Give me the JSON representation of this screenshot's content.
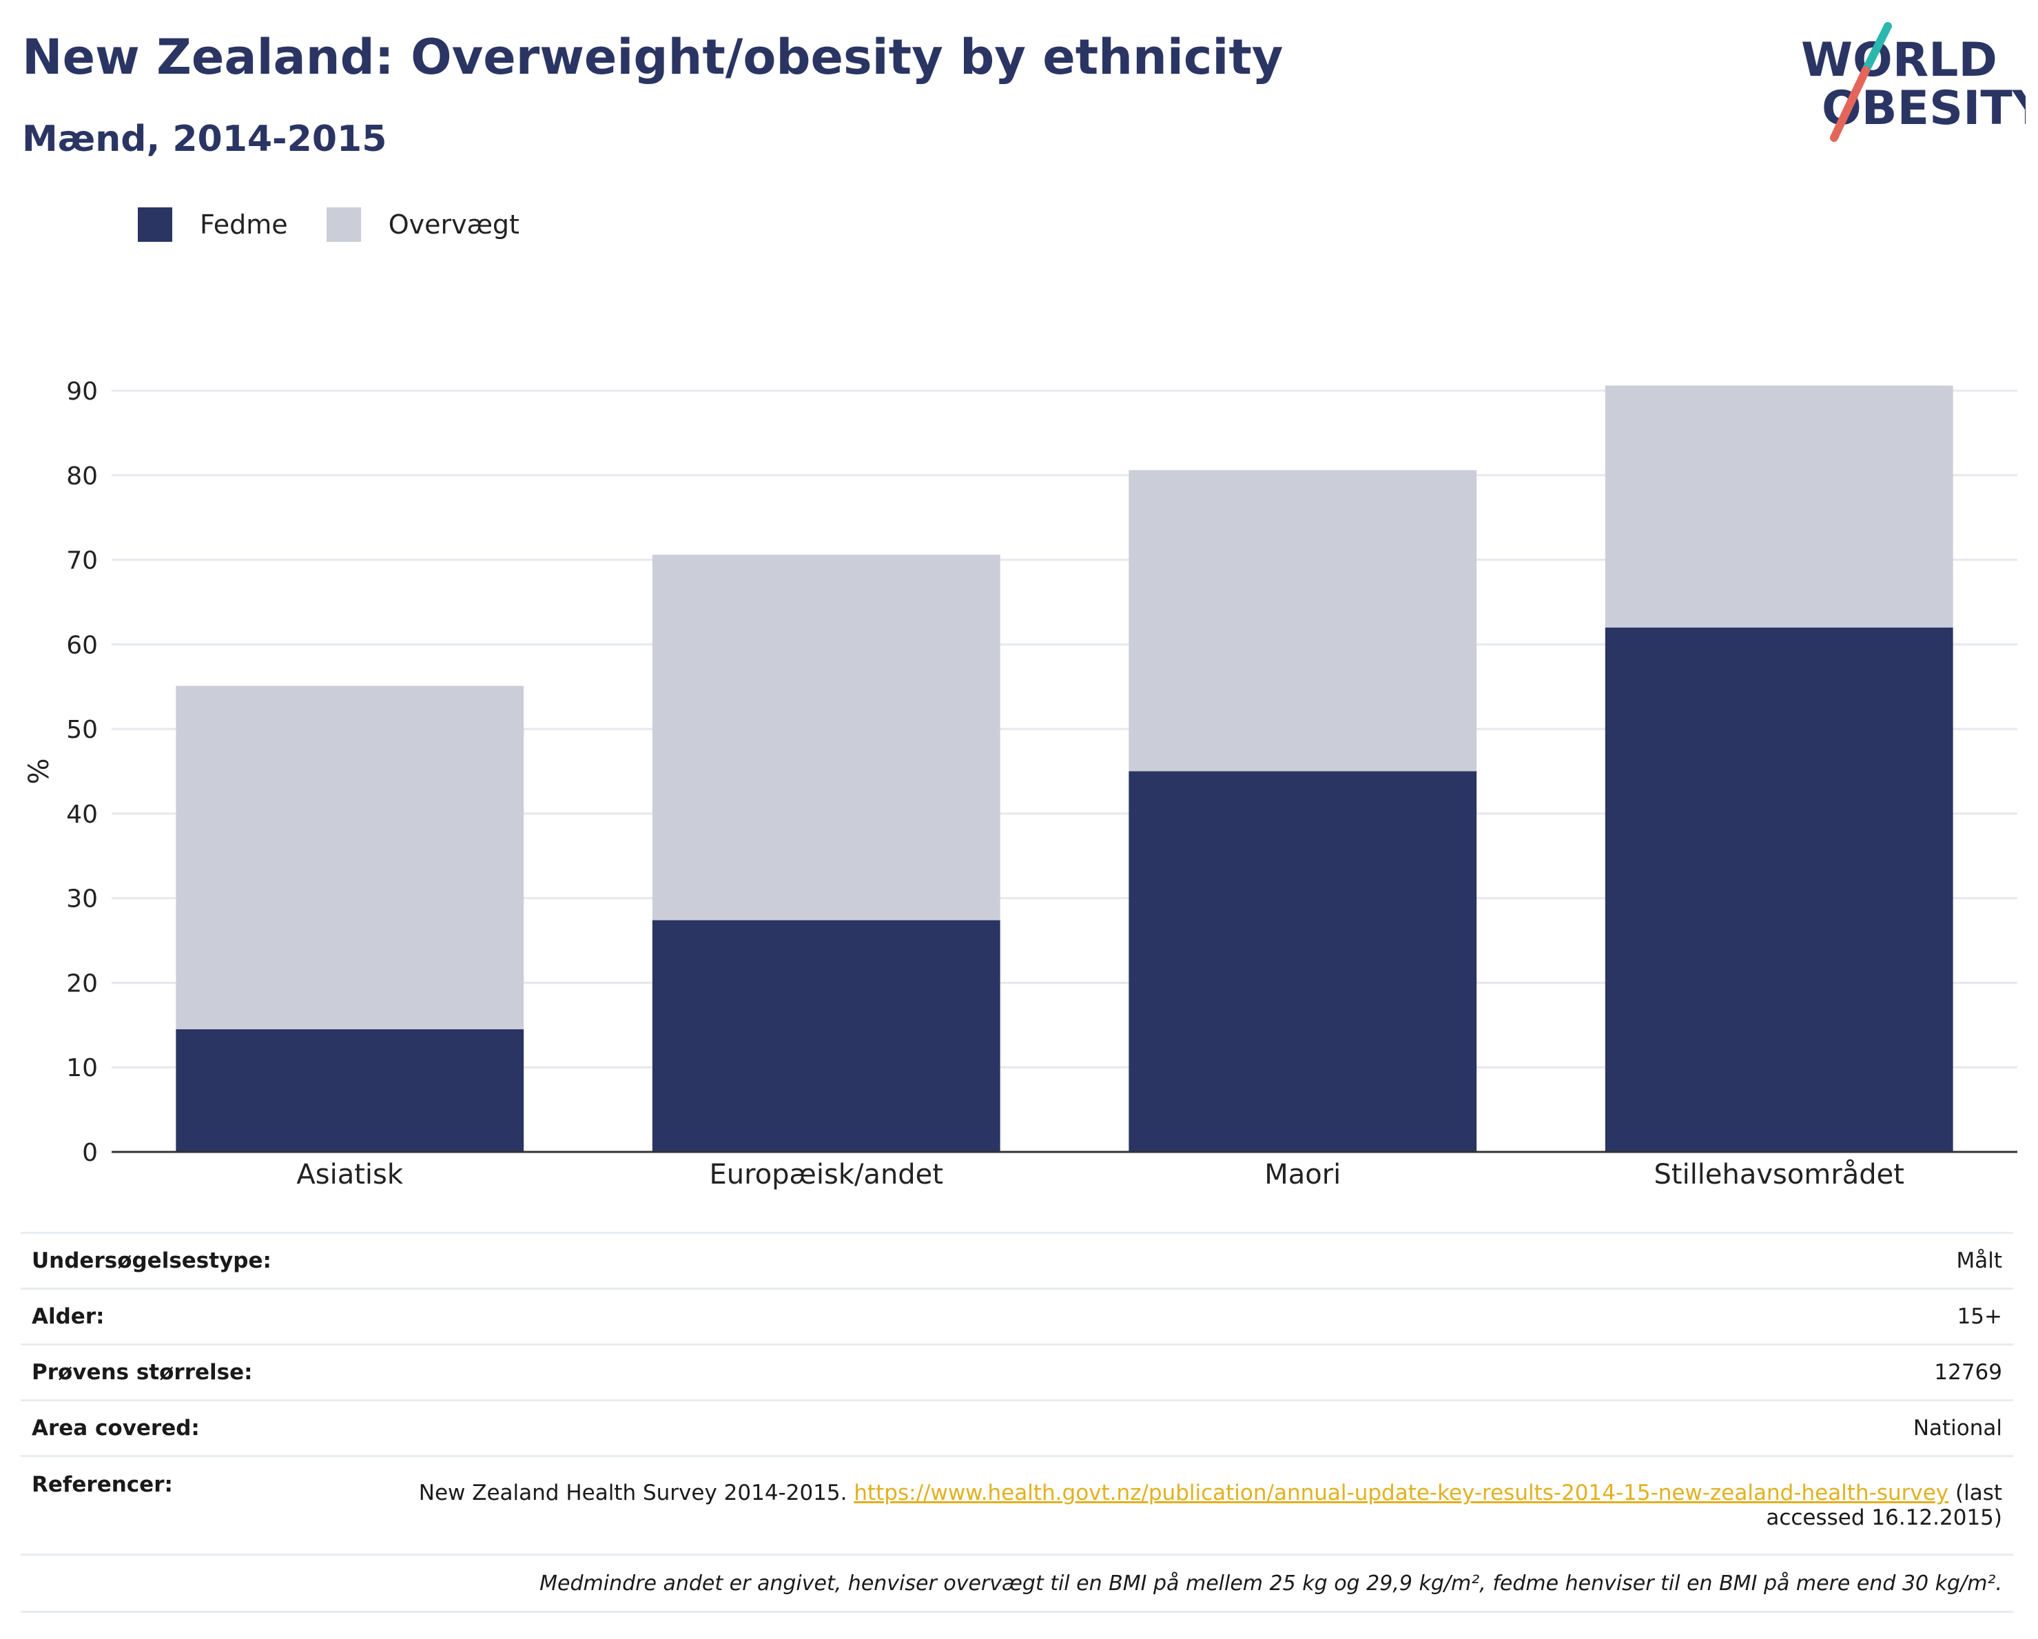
{
  "header": {
    "title": "New Zealand: Overweight/obesity by ethnicity",
    "subtitle": "Mænd, 2014-2015"
  },
  "logo": {
    "line1": "WORLD",
    "line2": "OBESITY",
    "colors": {
      "text": "#2a3563",
      "slash_teal": "#2ab7b0",
      "slash_red": "#e4665a"
    }
  },
  "legend": {
    "items": [
      {
        "label": "Fedme",
        "color": "#2a3563"
      },
      {
        "label": "Overvægt",
        "color": "#cbcdd8"
      }
    ]
  },
  "chart_data": {
    "type": "bar",
    "stacked": true,
    "categories": [
      "Asiatisk",
      "Europæisk/andet",
      "Maori",
      "Stillehavsområdet"
    ],
    "series": [
      {
        "name": "Fedme",
        "values": [
          14.5,
          27.4,
          45.0,
          62.0
        ],
        "color": "#2a3563"
      },
      {
        "name": "Overvægt",
        "values": [
          40.6,
          43.2,
          35.6,
          28.6
        ],
        "color": "#cbcdd8"
      }
    ],
    "totals": [
      55.1,
      70.6,
      80.6,
      90.6
    ],
    "ylabel": "%",
    "xlabel": "",
    "ylim": [
      0,
      90
    ],
    "yticks": [
      0,
      10,
      20,
      30,
      40,
      50,
      60,
      70,
      80,
      90
    ],
    "grid": true,
    "legend_position": "top-left"
  },
  "info": {
    "survey_type": {
      "label": "Undersøgelsestype:",
      "value": "Målt"
    },
    "age": {
      "label": "Alder:",
      "value": "15+"
    },
    "sample_size": {
      "label": "Prøvens størrelse:",
      "value": "12769"
    },
    "area": {
      "label": "Area covered:",
      "value": "National"
    },
    "references": {
      "label": "Referencer:",
      "text": "New Zealand Health Survey 2014-2015.",
      "link": "https://www.health.govt.nz/publication/annual-update-key-results-2014-15-new-zealand-health-survey",
      "suffix": "(last accessed 16.12.2015)"
    },
    "note": "Medmindre andet er angivet, henviser overvægt til en BMI på mellem 25 kg og 29,9 kg/m², fedme henviser til en BMI på mere end 30 kg/m²."
  }
}
